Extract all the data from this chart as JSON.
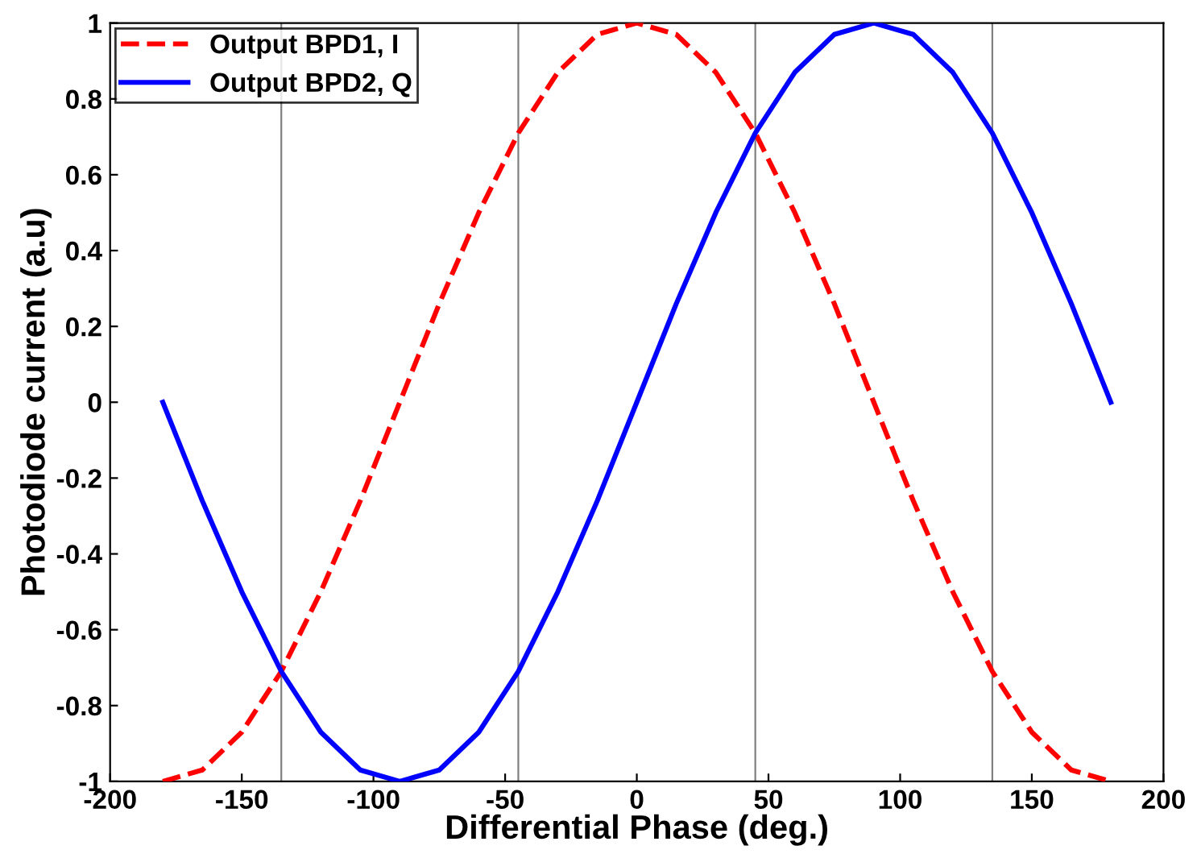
{
  "chart_data": {
    "type": "line",
    "xlabel": "Differential Phase (deg.)",
    "ylabel": "Photodiode current (a.u)",
    "x": [
      -180,
      -165,
      -150,
      -135,
      -120,
      -105,
      -90,
      -75,
      -60,
      -45,
      -30,
      -15,
      0,
      15,
      30,
      45,
      60,
      75,
      90,
      105,
      120,
      135,
      150,
      165,
      180
    ],
    "series": [
      {
        "name": "Output BPD1, I",
        "color": "#ff0000",
        "line_style": "dashed",
        "values": [
          -1,
          -0.97,
          -0.87,
          -0.71,
          -0.5,
          -0.26,
          0,
          0.26,
          0.5,
          0.71,
          0.87,
          0.97,
          1,
          0.97,
          0.87,
          0.71,
          0.5,
          0.26,
          0,
          -0.26,
          -0.5,
          -0.71,
          -0.87,
          -0.97,
          -1
        ]
      },
      {
        "name": "Output BPD2, Q",
        "color": "#0000ff",
        "line_style": "solid",
        "values": [
          0,
          -0.26,
          -0.5,
          -0.71,
          -0.87,
          -0.97,
          -1,
          -0.97,
          -0.87,
          -0.71,
          -0.5,
          -0.26,
          0,
          0.26,
          0.5,
          0.71,
          0.87,
          0.97,
          1,
          0.97,
          0.87,
          0.71,
          0.5,
          0.26,
          0
        ]
      }
    ],
    "xlim": [
      -200,
      200
    ],
    "xticks": [
      -200,
      -150,
      -100,
      -50,
      0,
      50,
      100,
      150,
      200
    ],
    "ylim": [
      -1,
      1
    ],
    "yticks": [
      -1,
      -0.8,
      -0.6,
      -0.4,
      -0.2,
      0,
      0.2,
      0.4,
      0.6,
      0.8,
      1
    ],
    "ref_lines": [
      {
        "axis": "x",
        "value": -135,
        "color": "#808080"
      },
      {
        "axis": "x",
        "value": -45,
        "color": "#808080"
      },
      {
        "axis": "x",
        "value": 45,
        "color": "#808080"
      },
      {
        "axis": "x",
        "value": 135,
        "color": "#808080"
      }
    ],
    "grid": false,
    "legend": "top left",
    "marker": "none"
  }
}
